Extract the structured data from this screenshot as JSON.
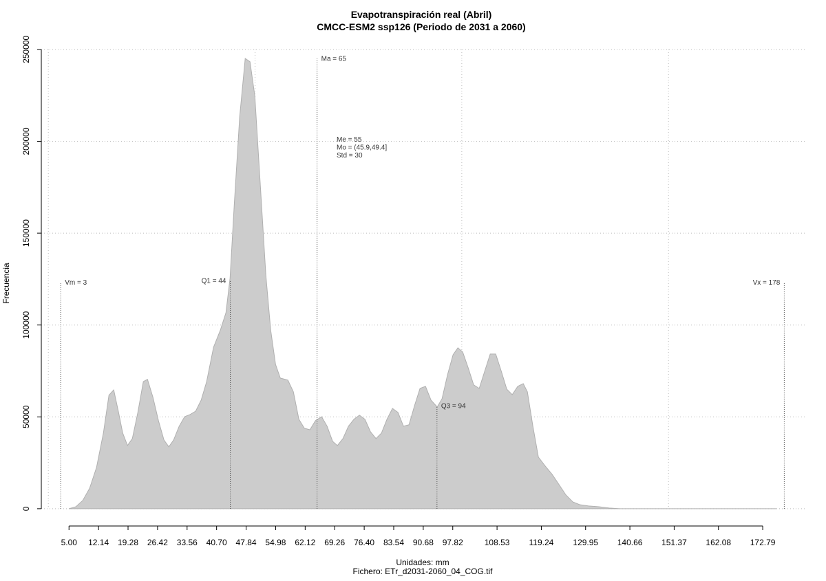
{
  "chart_data": {
    "type": "area",
    "title": "Evapotranspiración real (Abril)",
    "subtitle": "CMCC-ESM2 ssp126 (Periodo de 2031 a 2060)",
    "x_label": "Unidades: mm",
    "caption": "Fichero: ETr_d2031-2060_04_COG.tif",
    "y_label": "Frecuencia",
    "x": [
      5,
      6.66,
      8.33,
      10.0,
      11.66,
      13.32,
      14.66,
      15.82,
      16.99,
      17.99,
      19.15,
      20.32,
      21.65,
      22.98,
      23.98,
      25.31,
      26.64,
      27.97,
      29.14,
      30.3,
      31.64,
      32.97,
      34.3,
      35.63,
      36.96,
      38.29,
      39.96,
      41.62,
      42.96,
      43.95,
      44.95,
      46.28,
      47.62,
      48.78,
      49.95,
      51.28,
      52.61,
      53.78,
      54.95,
      56.11,
      57.94,
      59.27,
      60.6,
      61.93,
      63.27,
      64.6,
      66.1,
      67.43,
      68.76,
      69.92,
      71.26,
      72.59,
      73.92,
      75.25,
      76.58,
      77.92,
      79.25,
      80.58,
      81.91,
      83.24,
      84.57,
      85.9,
      87.24,
      88.57,
      89.9,
      91.23,
      92.56,
      94.06,
      95.23,
      96.56,
      97.89,
      99.06,
      100.22,
      101.55,
      102.88,
      104.22,
      105.55,
      106.88,
      108.21,
      109.55,
      110.88,
      112.21,
      113.54,
      114.87,
      115.87,
      117.2,
      118.53,
      120.2,
      121.86,
      123.53,
      125.19,
      126.86,
      128.52,
      130.69,
      133.18,
      135.68,
      138.18,
      176.13
    ],
    "values": [
      0,
      1100,
      4500,
      11200,
      22500,
      41200,
      61800,
      64700,
      52400,
      41200,
      34400,
      38200,
      52400,
      69200,
      70400,
      60600,
      47900,
      37400,
      33700,
      37400,
      44900,
      50100,
      51300,
      53100,
      59100,
      69200,
      87900,
      97300,
      106700,
      125400,
      164700,
      213300,
      245100,
      243300,
      224600,
      175900,
      127200,
      97300,
      78600,
      71100,
      70000,
      63600,
      48700,
      43800,
      43000,
      47900,
      50100,
      44900,
      36700,
      34400,
      38200,
      44900,
      48700,
      50900,
      48700,
      41900,
      38200,
      41200,
      48700,
      54600,
      52400,
      44900,
      45700,
      56100,
      65500,
      66600,
      59100,
      55400,
      59900,
      73000,
      83800,
      87600,
      85300,
      76700,
      67400,
      65500,
      74900,
      84200,
      84200,
      74900,
      65100,
      62100,
      66600,
      68100,
      63600,
      44900,
      28100,
      23200,
      18700,
      13100,
      7500,
      3700,
      2200,
      1500,
      1100,
      400,
      0,
      0
    ],
    "color": "#cccccc",
    "xlim": [
      -1.7,
      183.1
    ],
    "ylim": [
      -9400,
      258200
    ],
    "xticks": [
      {
        "value": 5,
        "label": "5.00"
      },
      12.14,
      19.28,
      26.42,
      33.56,
      {
        "value": 40.7,
        "label": "40.70"
      },
      47.84,
      54.98,
      62.12,
      69.26,
      {
        "value": 76.4,
        "label": "76.40"
      },
      83.54,
      90.68,
      97.82,
      108.53,
      119.24,
      129.95,
      140.66,
      151.37,
      162.08,
      172.79
    ],
    "yticks": [
      0,
      50000,
      100000,
      150000,
      200000,
      250000
    ],
    "xgrid": [
      0,
      50,
      100,
      150
    ],
    "grid": true,
    "markers": [
      {
        "label": "Vm = 3",
        "x": 3,
        "y": 123000
      },
      {
        "label": "Q1 = 44",
        "x": 44,
        "y": 124000
      },
      {
        "label": "Ma = 65",
        "x": 65,
        "y": 245000
      },
      {
        "label": "Q3 = 94",
        "x": 94,
        "y": 56000
      },
      {
        "label": "Vx = 178",
        "x": 178,
        "y": 123000
      }
    ],
    "stats": [
      "Me = 55",
      "Mo = (45.9,49.4]",
      "Std = 30"
    ]
  }
}
